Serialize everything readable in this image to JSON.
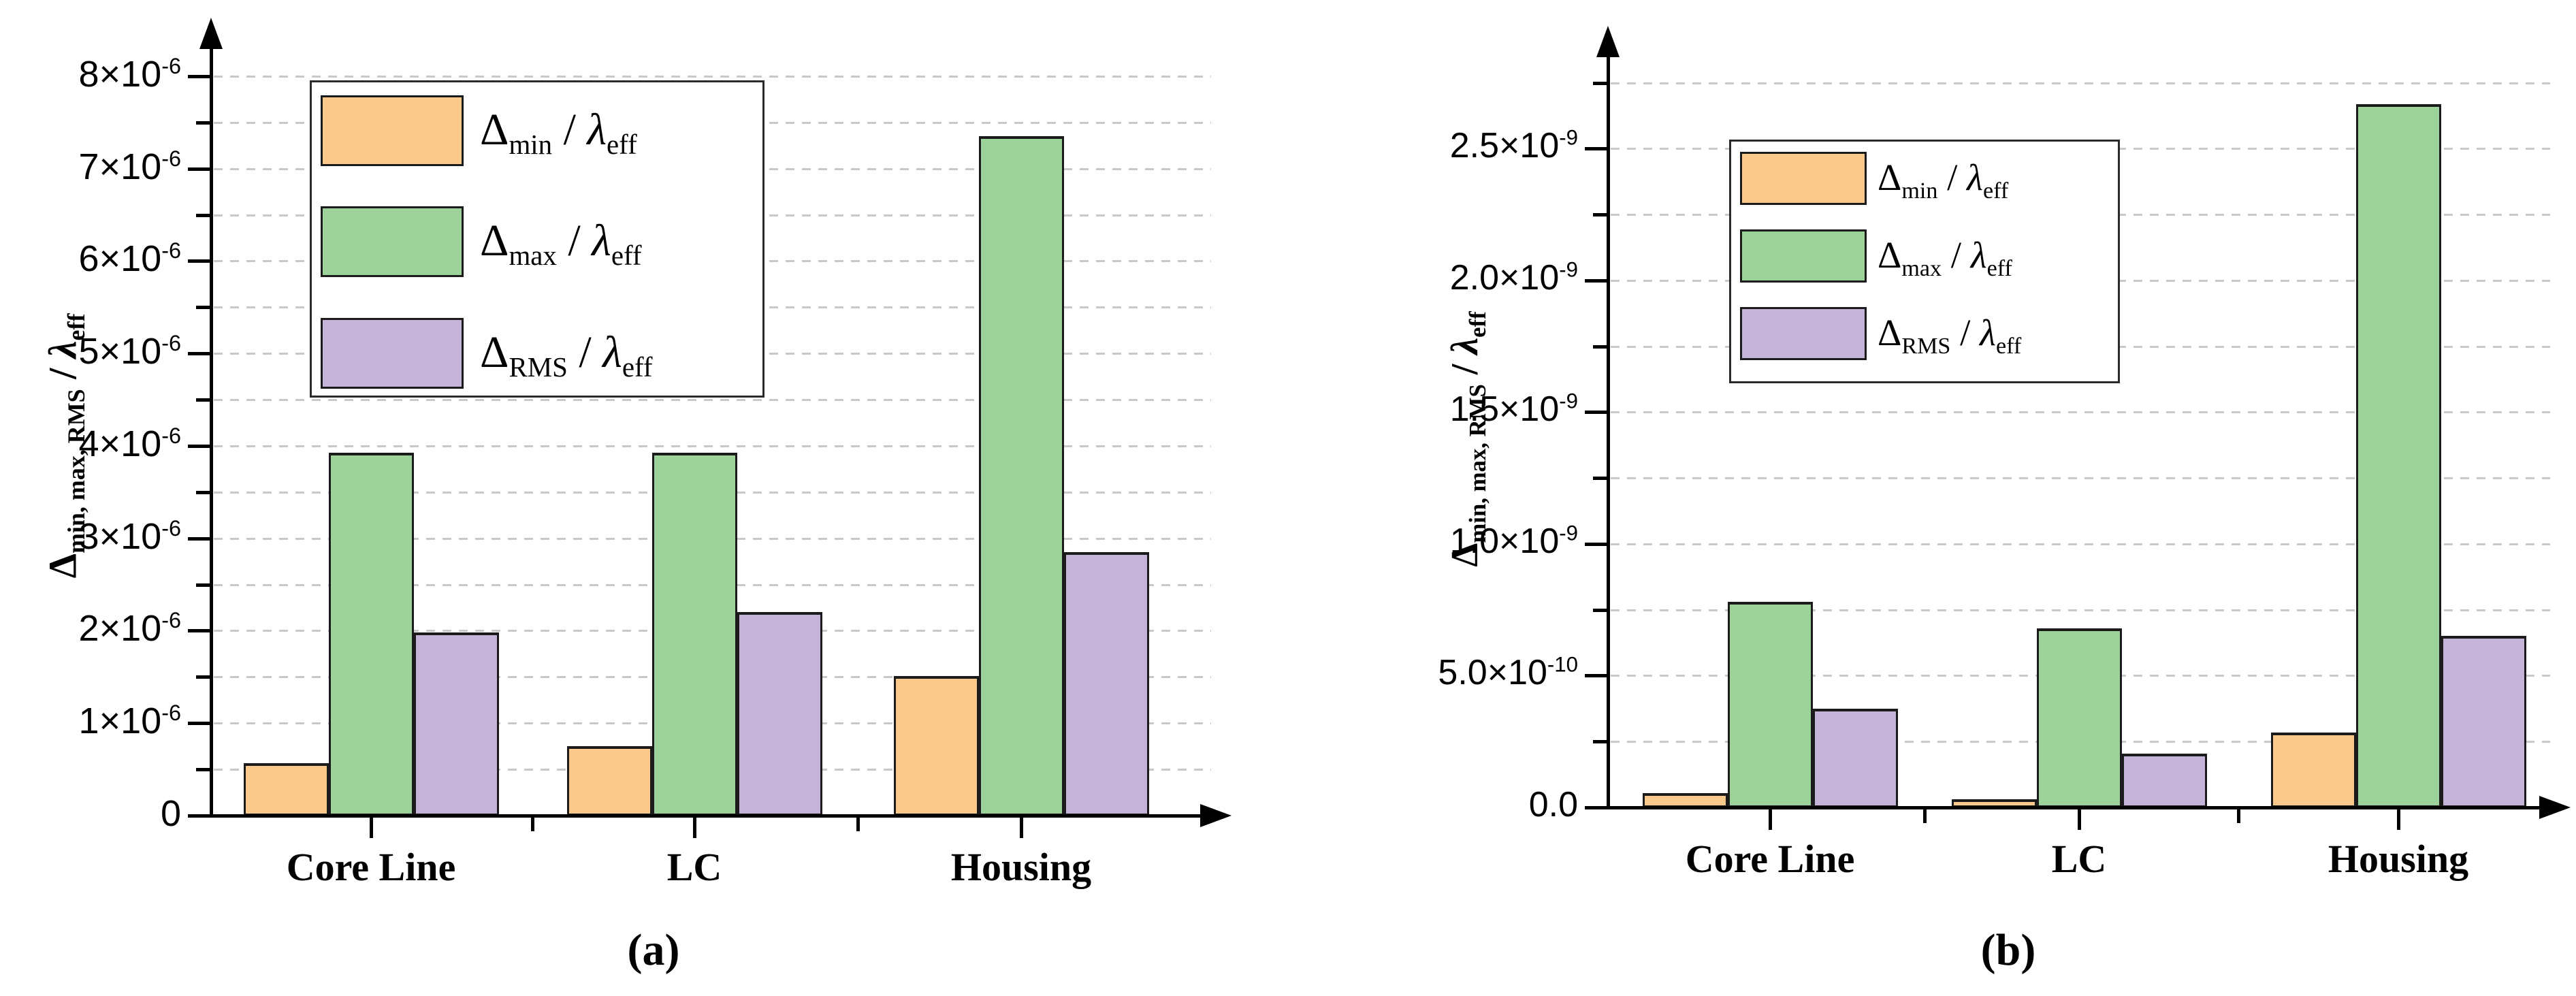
{
  "figure": {
    "background": "#ffffff",
    "captions": {
      "a": "(a)",
      "b": "(b)"
    }
  },
  "colors": {
    "series": [
      "#FBC98B",
      "#9DD39B",
      "#C6B4D8"
    ],
    "bar_border": "#1b1b1b",
    "gridline": "#c9c9c9",
    "axis": "#000000",
    "legend_border": "#2a2a2a"
  },
  "chart_data": [
    {
      "panel": "(a)",
      "type": "bar",
      "title": "",
      "categories": [
        "Core Line",
        "LC",
        "Housing"
      ],
      "series": [
        {
          "name": "Δ_{min} / λ_{eff}",
          "values": [
            5.7e-07,
            7.5e-07,
            1.51e-06
          ]
        },
        {
          "name": "Δ_{max} / λ_{eff}",
          "values": [
            3.93e-06,
            3.93e-06,
            7.35e-06
          ]
        },
        {
          "name": "Δ_{RMS} / λ_{eff}",
          "values": [
            1.98e-06,
            2.2e-06,
            2.85e-06
          ]
        }
      ],
      "xlabel": "",
      "ylabel": "Δ_{min, max, RMS} / λ_{eff}",
      "ylim": [
        0,
        8.3e-06
      ],
      "grid": "dashed-horizontal-every-0.5e-6",
      "legend_position": "upper-left-inside",
      "yticks_major": [
        {
          "v": 0,
          "label": "0"
        },
        {
          "v": 1e-06,
          "label": "1×10^{-6}"
        },
        {
          "v": 2e-06,
          "label": "2×10^{-6}"
        },
        {
          "v": 3e-06,
          "label": "3×10^{-6}"
        },
        {
          "v": 4e-06,
          "label": "4×10^{-6}"
        },
        {
          "v": 5e-06,
          "label": "5×10^{-6}"
        },
        {
          "v": 6e-06,
          "label": "6×10^{-6}"
        },
        {
          "v": 7e-06,
          "label": "7×10^{-6}"
        },
        {
          "v": 8e-06,
          "label": "8×10^{-6}"
        }
      ],
      "yticks_minor": [
        5e-07,
        1.5e-06,
        2.5e-06,
        3.5e-06,
        4.5e-06,
        5.5e-06,
        6.5e-06,
        7.5e-06
      ],
      "grid_step": 5e-07,
      "grid_max": 8e-06
    },
    {
      "panel": "(b)",
      "type": "bar",
      "title": "",
      "categories": [
        "Core Line",
        "LC",
        "Housing"
      ],
      "series": [
        {
          "name": "Δ_{min} / λ_{eff}",
          "values": [
            5.5e-11,
            3e-11,
            2.85e-10
          ]
        },
        {
          "name": "Δ_{max} / λ_{eff}",
          "values": [
            7.8e-10,
            6.8e-10,
            2.67e-09
          ]
        },
        {
          "name": "Δ_{RMS} / λ_{eff}",
          "values": [
            3.75e-10,
            2.05e-10,
            6.5e-10
          ]
        }
      ],
      "xlabel": "",
      "ylabel": "Δ_{min, max, RMS} / λ_{eff}",
      "ylim": [
        0,
        2.86e-09
      ],
      "grid": "dashed-horizontal-every-0.25e-9",
      "legend_position": "upper-left-inside",
      "yticks_major": [
        {
          "v": 0,
          "label": "0.0"
        },
        {
          "v": 5e-10,
          "label": "5.0×10^{-10}"
        },
        {
          "v": 1e-09,
          "label": "1.0×10^{-9}"
        },
        {
          "v": 1.5e-09,
          "label": "1.5×10^{-9}"
        },
        {
          "v": 2e-09,
          "label": "2.0×10^{-9}"
        },
        {
          "v": 2.5e-09,
          "label": "2.5×10^{-9}"
        }
      ],
      "yticks_minor": [
        2.5e-10,
        7.5e-10,
        1.25e-09,
        1.75e-09,
        2.25e-09,
        2.75e-09
      ],
      "grid_step": 2.5e-10,
      "grid_max": 2.75e-09
    }
  ]
}
